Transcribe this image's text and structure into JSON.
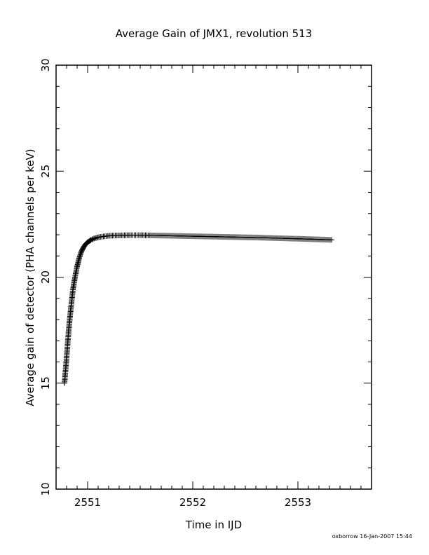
{
  "footer": "oxborrow 16-Jan-2007 15:44",
  "chart_data": {
    "type": "scatter",
    "title": "Average Gain of JMX1, revolution 513",
    "xlabel": "Time in IJD",
    "ylabel": "Average gain of detector (PHA channels per keV)",
    "xlim": [
      2550.7,
      2553.7
    ],
    "ylim": [
      10,
      30
    ],
    "xticks": [
      "2551",
      "2552",
      "2553"
    ],
    "yticks": [
      "10",
      "15",
      "20",
      "25",
      "30"
    ],
    "marker": "plus",
    "color": "#000000",
    "x": [
      2550.78,
      2550.8,
      2550.82,
      2550.84,
      2550.86,
      2550.88,
      2550.9,
      2550.92,
      2550.94,
      2550.96,
      2550.98,
      2551.0,
      2551.03,
      2551.06,
      2551.1,
      2551.15,
      2551.2,
      2551.3,
      2551.4,
      2551.5,
      2551.6,
      2551.8,
      2552.0,
      2552.2,
      2552.4,
      2552.6,
      2552.8,
      2553.0,
      2553.2,
      2553.32
    ],
    "y": [
      15.0,
      16.2,
      17.5,
      18.5,
      19.4,
      20.0,
      20.5,
      20.9,
      21.2,
      21.4,
      21.55,
      21.65,
      21.75,
      21.82,
      21.88,
      21.92,
      21.95,
      21.97,
      21.98,
      21.98,
      21.97,
      21.95,
      21.93,
      21.91,
      21.89,
      21.87,
      21.84,
      21.81,
      21.78,
      21.76
    ]
  }
}
